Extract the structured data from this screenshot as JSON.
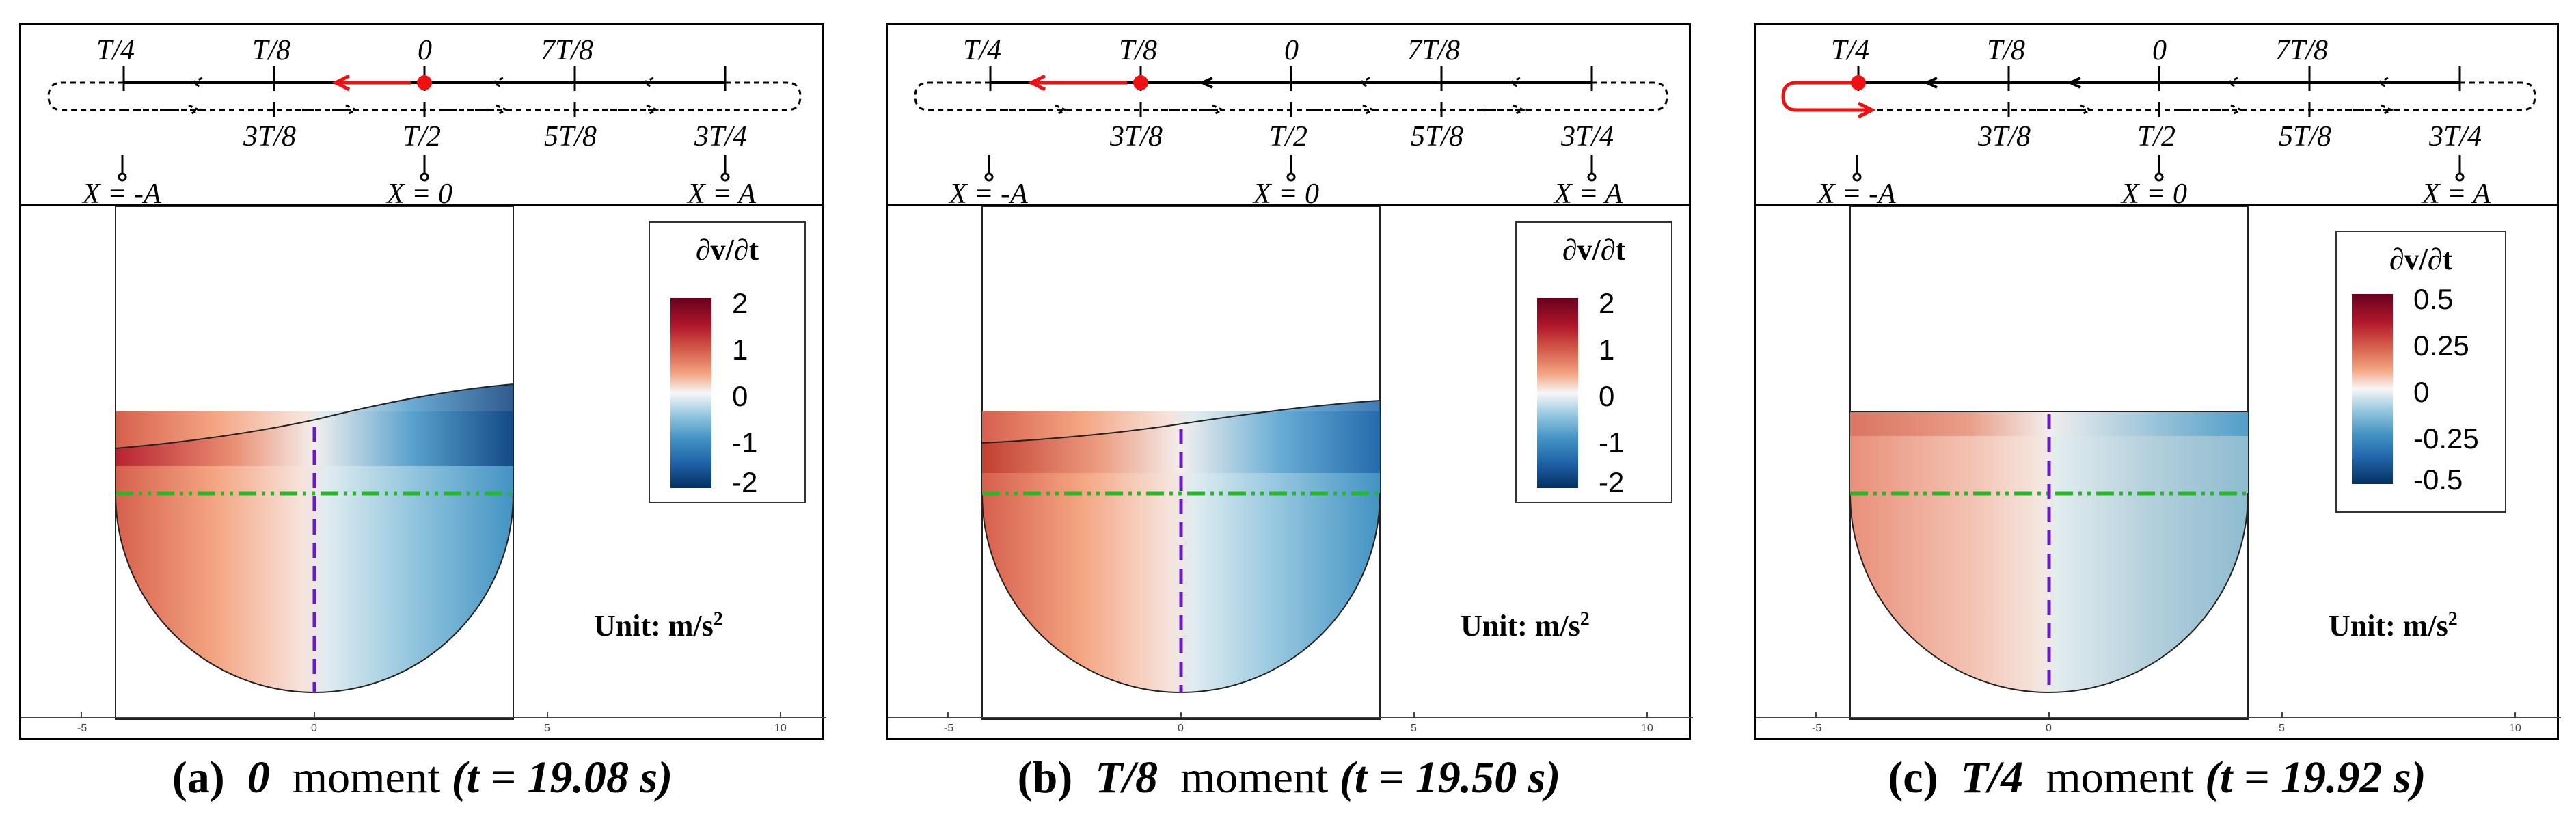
{
  "timeline": {
    "top_labels": [
      "T/4",
      "T/8",
      "0",
      "7T/8"
    ],
    "bottom_labels": [
      "3T/8",
      "T/2",
      "5T/8",
      "3T/4"
    ],
    "position_labels": [
      "X = -A",
      "X = 0",
      "X = A"
    ]
  },
  "axis_ticks": [
    "-5",
    "0",
    "5",
    "10"
  ],
  "legend_title": "∂v/∂t",
  "unit_text": "Unit: m/s",
  "unit_sup": "2",
  "panels": [
    {
      "caption_letter": "(a)",
      "caption_moment_label": "0",
      "caption_moment_word": "moment",
      "caption_time": "(t = 19.08 s)",
      "legend_ticks": [
        "2",
        "1",
        "0",
        "-1",
        "-2"
      ],
      "surface": "sloped",
      "marker_position": "0"
    },
    {
      "caption_letter": "(b)",
      "caption_moment_label": "T/8",
      "caption_moment_word": "moment",
      "caption_time": "(t = 19.50 s)",
      "legend_ticks": [
        "2",
        "1",
        "0",
        "-1",
        "-2"
      ],
      "surface": "sloped",
      "marker_position": "T/8"
    },
    {
      "caption_letter": "(c)",
      "caption_moment_label": "T/4",
      "caption_moment_word": "moment",
      "caption_time": "(t = 19.92 s)",
      "legend_ticks": [
        "0.5",
        "0.25",
        "0",
        "-0.25",
        "-0.5"
      ],
      "surface": "flat",
      "marker_position": "T/4"
    }
  ],
  "colors": {
    "marker": "#ee1111",
    "centerline": "#6a1bbf",
    "waterline": "#22bb22",
    "positive_dark": "#67001f",
    "negative_dark": "#053061"
  }
}
